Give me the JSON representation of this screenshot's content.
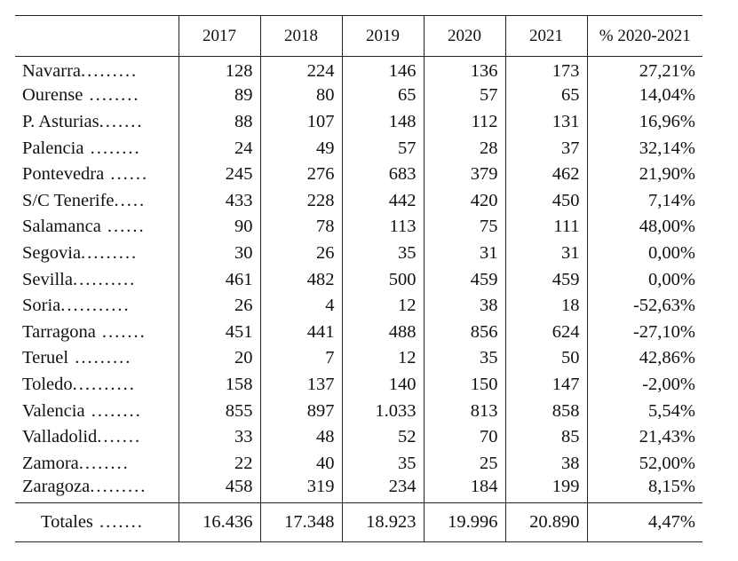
{
  "table": {
    "headers": [
      "",
      "2017",
      "2018",
      "2019",
      "2020",
      "2021",
      "% 2020-2021"
    ],
    "rows": [
      {
        "name": "Navarra",
        "dots": ".........",
        "values": [
          "128",
          "224",
          "146",
          "136",
          "173",
          "27,21%"
        ]
      },
      {
        "name": "Ourense",
        "dots": " ........",
        "values": [
          "89",
          "80",
          "65",
          "57",
          "65",
          "14,04%"
        ]
      },
      {
        "name": "P. Asturias",
        "dots": ".......",
        "values": [
          "88",
          "107",
          "148",
          "112",
          "131",
          "16,96%"
        ]
      },
      {
        "name": "Palencia",
        "dots": " ........",
        "values": [
          "24",
          "49",
          "57",
          "28",
          "37",
          "32,14%"
        ]
      },
      {
        "name": "Pontevedra",
        "dots": " ......",
        "values": [
          "245",
          "276",
          "683",
          "379",
          "462",
          "21,90%"
        ]
      },
      {
        "name": "S/C Tenerife",
        "dots": ".....",
        "values": [
          "433",
          "228",
          "442",
          "420",
          "450",
          "7,14%"
        ]
      },
      {
        "name": "Salamanca",
        "dots": " ......",
        "values": [
          "90",
          "78",
          "113",
          "75",
          "111",
          "48,00%"
        ]
      },
      {
        "name": "Segovia",
        "dots": ".........",
        "values": [
          "30",
          "26",
          "35",
          "31",
          "31",
          "0,00%"
        ]
      },
      {
        "name": "Sevilla",
        "dots": "..........",
        "values": [
          "461",
          "482",
          "500",
          "459",
          "459",
          "0,00%"
        ]
      },
      {
        "name": "Soria",
        "dots": "...........",
        "values": [
          "26",
          "4",
          "12",
          "38",
          "18",
          "-52,63%"
        ]
      },
      {
        "name": "Tarragona",
        "dots": " .......",
        "values": [
          "451",
          "441",
          "488",
          "856",
          "624",
          "-27,10%"
        ]
      },
      {
        "name": "Teruel",
        "dots": " .........",
        "values": [
          "20",
          "7",
          "12",
          "35",
          "50",
          "42,86%"
        ]
      },
      {
        "name": "Toledo",
        "dots": "..........",
        "values": [
          "158",
          "137",
          "140",
          "150",
          "147",
          "-2,00%"
        ]
      },
      {
        "name": "Valencia",
        "dots": " ........",
        "values": [
          "855",
          "897",
          "1.033",
          "813",
          "858",
          "5,54%"
        ]
      },
      {
        "name": "Valladolid",
        "dots": ".......",
        "values": [
          "33",
          "48",
          "52",
          "70",
          "85",
          "21,43%"
        ]
      },
      {
        "name": "Zamora",
        "dots": "........",
        "values": [
          "22",
          "40",
          "35",
          "25",
          "38",
          "52,00%"
        ]
      },
      {
        "name": "Zaragoza",
        "dots": ".........",
        "values": [
          "458",
          "319",
          "234",
          "184",
          "199",
          "8,15%"
        ]
      }
    ],
    "totals": {
      "name": "Totales",
      "dots": " .......",
      "values": [
        "16.436",
        "17.348",
        "18.923",
        "19.996",
        "20.890",
        "4,47%"
      ]
    }
  }
}
